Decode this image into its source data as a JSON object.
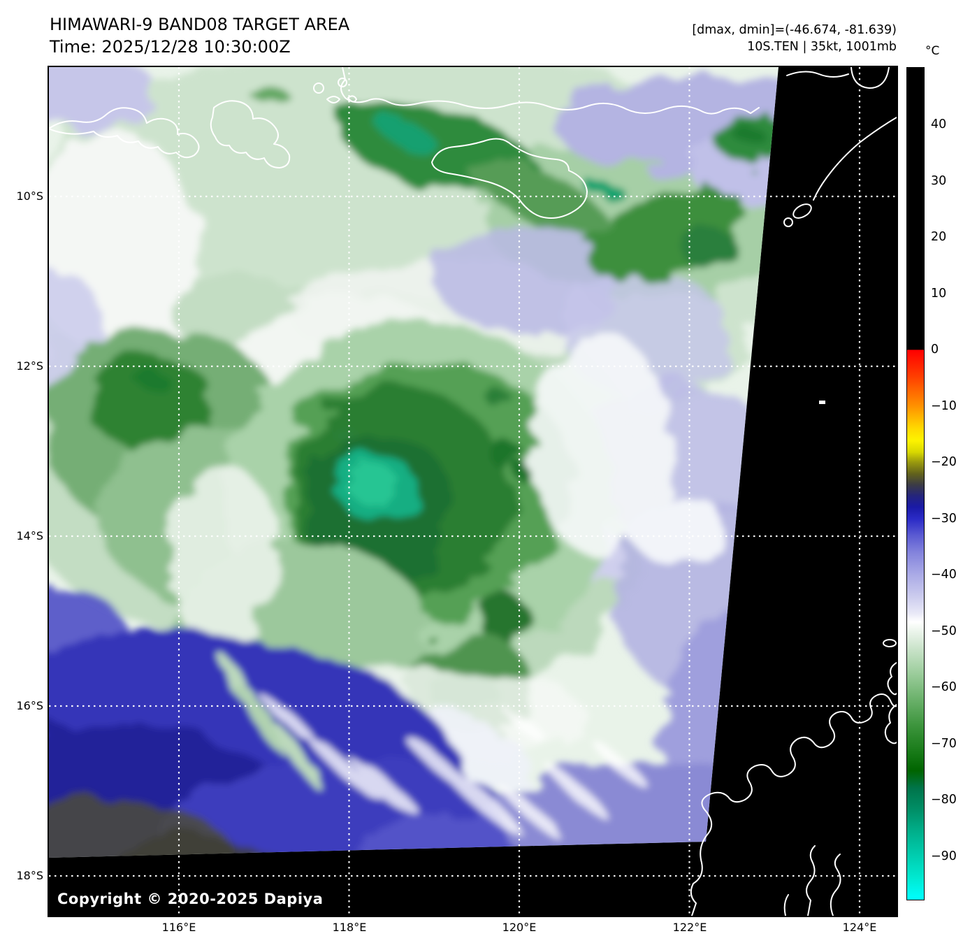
{
  "header": {
    "title": "HIMAWARI-9 BAND08 TARGET AREA",
    "time_line": "Time: 2025/12/28 10:30:00Z"
  },
  "annotations": {
    "range_line": "[dmax, dmin]=(-46.674, -81.639)",
    "storm_line": "10S.TEN | 35kt, 1001mb"
  },
  "colorbar": {
    "unit_label": "°C",
    "tick_labels": [
      "40",
      "30",
      "20",
      "10",
      "0",
      "−10",
      "−20",
      "−30",
      "−40",
      "−50",
      "−60",
      "−70",
      "−80",
      "−90"
    ]
  },
  "map": {
    "copyright": "Copyright © 2020-2025 Dapiya",
    "lat_tick_labels": [
      "10°S",
      "12°S",
      "14°S",
      "16°S",
      "18°S"
    ],
    "lon_tick_labels": [
      "116°E",
      "118°E",
      "120°E",
      "122°E",
      "124°E"
    ]
  },
  "colors": {
    "offscan_background": "#000000",
    "coastline": "#ffffff",
    "gridline": "#ffffff",
    "cold_core_teal": "#1db389",
    "deep_cloud_green": "#1f7030",
    "warm_dry_navy": "#2a2ab0"
  }
}
